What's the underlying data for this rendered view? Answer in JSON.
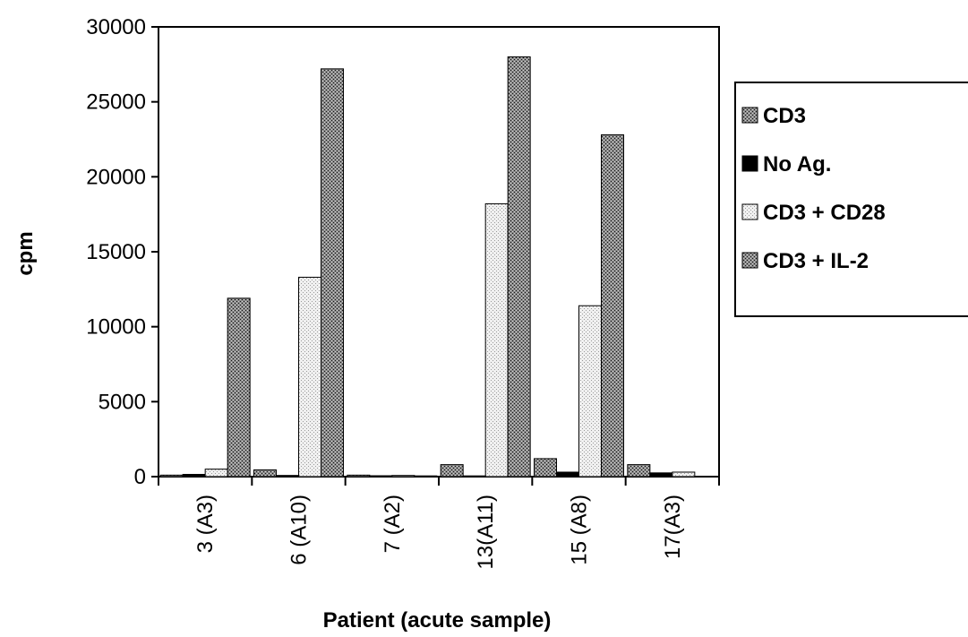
{
  "chart_data": {
    "type": "bar",
    "title": "",
    "xlabel": "Patient (acute sample)",
    "ylabel": "cpm",
    "ylim": [
      0,
      30000
    ],
    "yticks": [
      0,
      5000,
      10000,
      15000,
      20000,
      25000,
      30000
    ],
    "categories": [
      "3 (A3)",
      "6 (A10)",
      "7 (A2)",
      "13(A11)",
      "15 (A8)",
      "17(A3)"
    ],
    "series": [
      {
        "name": "CD3",
        "values": [
          100,
          450,
          100,
          800,
          1200,
          800
        ],
        "pattern": "crosshatch-dark"
      },
      {
        "name": "No Ag.",
        "values": [
          150,
          80,
          60,
          50,
          300,
          250
        ],
        "pattern": "solid-black"
      },
      {
        "name": "CD3 + CD28",
        "values": [
          500,
          13300,
          80,
          18200,
          11400,
          300
        ],
        "pattern": "dots-light"
      },
      {
        "name": "CD3 + IL-2",
        "values": [
          11900,
          27200,
          50,
          28000,
          22800,
          0
        ],
        "pattern": "crosshatch-dark"
      }
    ],
    "grid": false,
    "legend_position": "right"
  }
}
